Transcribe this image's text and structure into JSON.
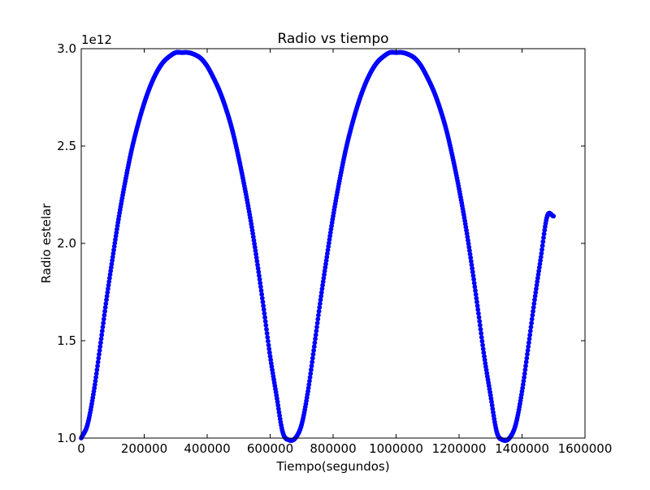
{
  "chart_data": {
    "type": "scatter",
    "title": "Radio vs tiempo",
    "xlabel": "Tiempo(segundos)",
    "ylabel": "Radio estelar",
    "y_offset_label": "1e12",
    "xlim": [
      0,
      1600000
    ],
    "ylim": [
      1.0,
      3.0
    ],
    "y_scale_multiplier": 1000000000000.0,
    "x_ticks": [
      0,
      200000,
      400000,
      600000,
      800000,
      1000000,
      1200000,
      1400000,
      1600000
    ],
    "x_tick_labels": [
      "0",
      "200000",
      "400000",
      "600000",
      "800000",
      "1000000",
      "1200000",
      "1400000",
      "1600000"
    ],
    "y_ticks": [
      1.0,
      1.5,
      2.0,
      2.5,
      3.0
    ],
    "y_tick_labels": [
      "1.0",
      "1.5",
      "2.0",
      "2.5",
      "3.0"
    ],
    "grid": false,
    "legend": null,
    "marker_color": "#0000ff",
    "series": [
      {
        "x": [
          0,
          20000,
          40000,
          60000,
          80000,
          100000,
          120000,
          140000,
          160000,
          180000,
          200000,
          220000,
          240000,
          260000,
          280000,
          300000,
          320000,
          340000,
          360000,
          380000,
          400000,
          420000,
          440000,
          460000,
          480000,
          500000,
          520000,
          540000,
          560000,
          580000,
          600000,
          620000,
          640000,
          660000,
          680000,
          700000,
          720000,
          740000,
          760000,
          780000,
          800000,
          820000,
          840000,
          860000,
          880000,
          900000,
          920000,
          940000,
          960000,
          980000,
          1000000,
          1020000,
          1040000,
          1060000,
          1080000,
          1100000,
          1120000,
          1140000,
          1160000,
          1180000,
          1200000,
          1220000,
          1240000,
          1260000,
          1280000,
          1300000,
          1320000,
          1340000,
          1360000,
          1380000,
          1400000,
          1420000,
          1440000,
          1460000,
          1480000,
          1500000
        ],
        "y": [
          1.0,
          1.07,
          1.24,
          1.47,
          1.71,
          1.93,
          2.14,
          2.32,
          2.48,
          2.61,
          2.72,
          2.81,
          2.88,
          2.93,
          2.96,
          2.98,
          2.98,
          2.98,
          2.97,
          2.95,
          2.91,
          2.85,
          2.78,
          2.69,
          2.58,
          2.44,
          2.28,
          2.1,
          1.89,
          1.66,
          1.42,
          1.22,
          1.03,
          0.99,
          1.0,
          1.07,
          1.24,
          1.47,
          1.71,
          1.93,
          2.14,
          2.32,
          2.48,
          2.61,
          2.72,
          2.81,
          2.88,
          2.93,
          2.96,
          2.98,
          2.98,
          2.98,
          2.97,
          2.95,
          2.91,
          2.85,
          2.78,
          2.69,
          2.58,
          2.44,
          2.28,
          2.1,
          1.89,
          1.66,
          1.42,
          1.22,
          1.03,
          0.99,
          1.0,
          1.07,
          1.24,
          1.47,
          1.71,
          1.93,
          2.14,
          2.14
        ]
      }
    ]
  }
}
